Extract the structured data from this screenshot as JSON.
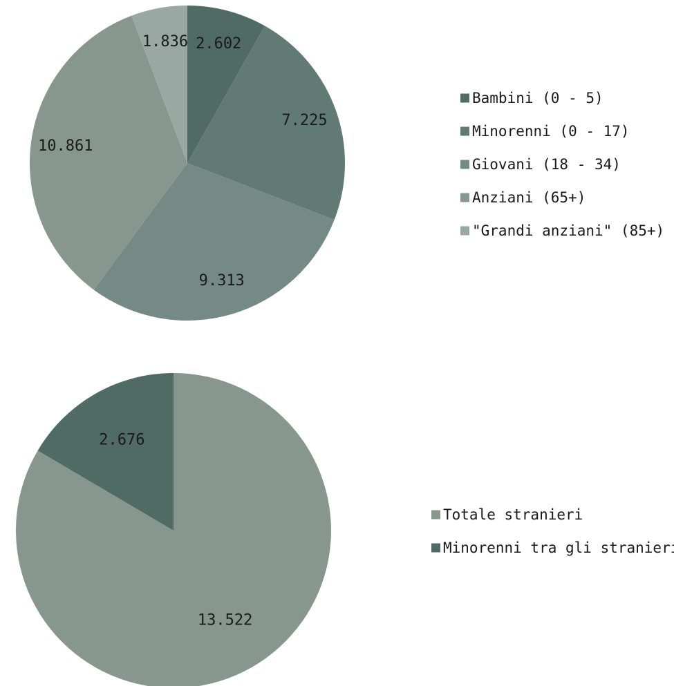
{
  "chart_data": [
    {
      "type": "pie",
      "categories": [
        "Bambini (0 - 5)",
        "Minorenni (0 - 17)",
        "Giovani (18 - 34)",
        "Anziani (65+)",
        "\"Grandi anziani\" (85+)"
      ],
      "values": [
        2602,
        7225,
        9313,
        10861,
        1836
      ],
      "value_labels": [
        "2.602",
        "7.225",
        "9.313",
        "10.861",
        "1.836"
      ],
      "colors": [
        "#506b64",
        "#617a73",
        "#758a84",
        "#87978f",
        "#9aa8a3"
      ],
      "legend_position": "right",
      "start_angle": "12 o'clock",
      "direction": "clockwise"
    },
    {
      "type": "pie",
      "categories": [
        "Totale stranieri",
        "Minorenni tra gli stranieri"
      ],
      "values": [
        13522,
        2676
      ],
      "value_labels": [
        "13.522",
        "2.676"
      ],
      "colors": [
        "#87978f",
        "#506b64"
      ],
      "legend_position": "right",
      "start_angle": "12 o'clock",
      "direction": "clockwise"
    }
  ]
}
